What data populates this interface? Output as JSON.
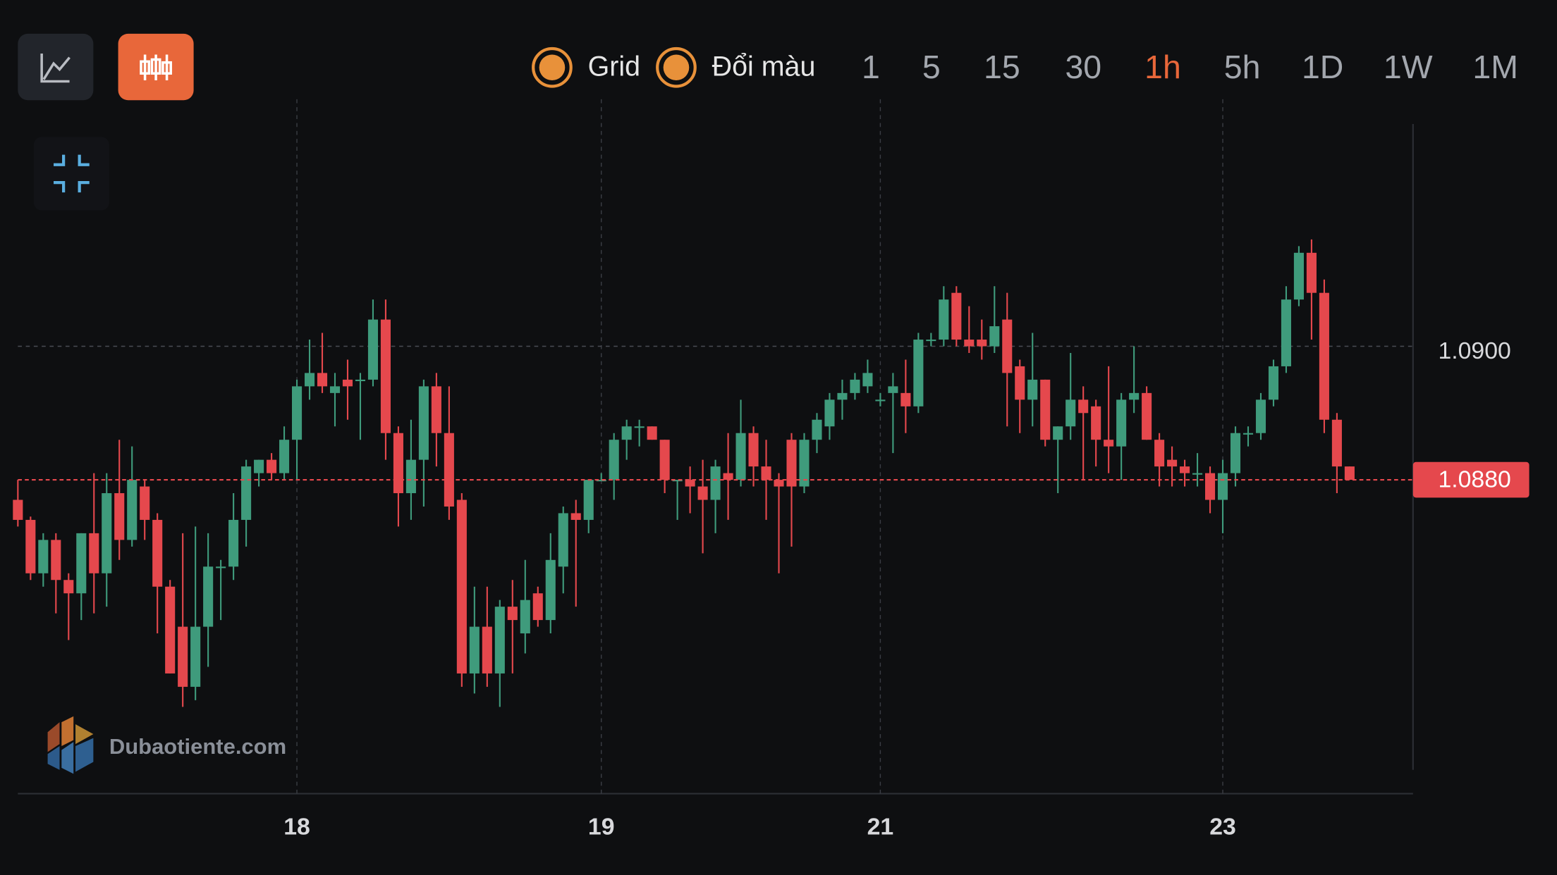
{
  "toolbar": {
    "toggles": [
      "Grid",
      "Đổi màu"
    ],
    "timeframes": [
      "1",
      "5",
      "15",
      "30",
      "1h",
      "5h",
      "1D",
      "1W",
      "1M"
    ],
    "active": 4,
    "active_color": "#e8673a"
  },
  "watermark": "Dubaotiente.com",
  "chart_data": {
    "type": "candlestick",
    "open": [
      1.0877,
      1.0874,
      1.0866,
      1.0871,
      1.0865,
      1.0863,
      1.0872,
      1.0866,
      1.0878,
      1.0871,
      1.0879,
      1.0874,
      1.0864,
      1.0858,
      1.0849,
      1.0858,
      1.0867,
      1.0867,
      1.0874,
      1.0881,
      1.0883,
      1.0881,
      1.0886,
      1.0894,
      1.0896,
      1.0893,
      1.0895,
      1.0895,
      1.0895,
      1.0904,
      1.0887,
      1.0878,
      1.0883,
      1.0894,
      1.0887,
      1.0877,
      1.0851,
      1.0858,
      1.0851,
      1.0861,
      1.0857,
      1.0863,
      1.0859,
      1.0867,
      1.0875,
      1.0874,
      1.088,
      1.088,
      1.0886,
      1.0888,
      1.0888,
      1.0886,
      1.088,
      1.088,
      1.0879,
      1.0877,
      1.0881,
      1.088,
      1.0887,
      1.0882,
      1.088,
      1.0886,
      1.0879,
      1.0886,
      1.0888,
      1.0892,
      1.0893,
      1.0894,
      1.0892,
      1.0893,
      1.0893,
      1.0891,
      1.0901,
      1.0901,
      1.0908,
      1.0901,
      1.0901,
      1.09,
      1.0904,
      1.0897,
      1.0892,
      1.0895,
      1.0886,
      1.0888,
      1.0892,
      1.0891,
      1.0886,
      1.0885,
      1.0892,
      1.0893,
      1.0886,
      1.0883,
      1.0882,
      1.0881,
      1.0881,
      1.0877,
      1.0881,
      1.0887,
      1.0887,
      1.0892,
      1.0897,
      1.0907,
      1.0914,
      1.0908,
      1.0889,
      1.0882
    ],
    "high": [
      1.088,
      1.08745,
      1.0872,
      1.0872,
      1.0866,
      1.0872,
      1.0881,
      1.0881,
      1.0886,
      1.0885,
      1.088,
      1.0875,
      1.0865,
      1.0872,
      1.0873,
      1.0872,
      1.0868,
      1.0878,
      1.0883,
      1.0883,
      1.0884,
      1.0888,
      1.0895,
      1.0901,
      1.0902,
      1.0896,
      1.0898,
      1.0896,
      1.0907,
      1.0907,
      1.0888,
      1.0889,
      1.0895,
      1.0896,
      1.0894,
      1.0878,
      1.0864,
      1.0864,
      1.0862,
      1.0865,
      1.0868,
      1.0864,
      1.0872,
      1.0876,
      1.0877,
      1.088,
      1.0881,
      1.0887,
      1.0889,
      1.0889,
      1.0888,
      1.0886,
      1.088,
      1.0882,
      1.0883,
      1.0883,
      1.0887,
      1.0892,
      1.0888,
      1.0886,
      1.0881,
      1.0887,
      1.0887,
      1.089,
      1.0893,
      1.0895,
      1.0896,
      1.0898,
      1.0893,
      1.0896,
      1.0898,
      1.0902,
      1.0902,
      1.0909,
      1.0909,
      1.0906,
      1.0904,
      1.0909,
      1.0908,
      1.0898,
      1.0902,
      1.0895,
      1.0888,
      1.0899,
      1.0894,
      1.0892,
      1.0897,
      1.0893,
      1.09,
      1.0894,
      1.0887,
      1.0885,
      1.0883,
      1.0884,
      1.0882,
      1.0883,
      1.0888,
      1.0888,
      1.0893,
      1.0898,
      1.0909,
      1.0915,
      1.0916,
      1.091,
      1.089,
      1.0882
    ],
    "low": [
      1.0873,
      1.0865,
      1.0864,
      1.086,
      1.0856,
      1.0859,
      1.086,
      1.0861,
      1.0868,
      1.087,
      1.0871,
      1.0857,
      1.0851,
      1.0846,
      1.0847,
      1.0852,
      1.0859,
      1.0865,
      1.087,
      1.0879,
      1.088,
      1.088,
      1.088,
      1.0892,
      1.0893,
      1.0888,
      1.0889,
      1.0886,
      1.0894,
      1.0883,
      1.0873,
      1.0874,
      1.0876,
      1.0882,
      1.0874,
      1.0849,
      1.0848,
      1.0849,
      1.0846,
      1.0851,
      1.0854,
      1.0858,
      1.0857,
      1.0863,
      1.0861,
      1.0872,
      1.088,
      1.0877,
      1.0883,
      1.0885,
      1.0886,
      1.0878,
      1.0874,
      1.0875,
      1.0869,
      1.0872,
      1.0874,
      1.0879,
      1.0879,
      1.0874,
      1.0866,
      1.087,
      1.0878,
      1.0884,
      1.0886,
      1.0889,
      1.0892,
      1.0893,
      1.0891,
      1.0884,
      1.0887,
      1.089,
      1.09,
      1.09,
      1.09,
      1.0899,
      1.0898,
      1.0899,
      1.0888,
      1.0887,
      1.0888,
      1.0885,
      1.0878,
      1.0886,
      1.088,
      1.0882,
      1.0881,
      1.088,
      1.089,
      1.0886,
      1.0879,
      1.0879,
      1.0879,
      1.0879,
      1.0875,
      1.0872,
      1.0879,
      1.0885,
      1.0886,
      1.0891,
      1.0896,
      1.0906,
      1.0901,
      1.0887,
      1.0878,
      1.088
    ],
    "close": [
      1.0874,
      1.0866,
      1.0871,
      1.0865,
      1.0863,
      1.0872,
      1.0866,
      1.0878,
      1.0871,
      1.088,
      1.0874,
      1.0864,
      1.0851,
      1.0849,
      1.0858,
      1.0867,
      1.0867,
      1.0874,
      1.0882,
      1.0883,
      1.0881,
      1.0886,
      1.0894,
      1.0896,
      1.0894,
      1.0894,
      1.0894,
      1.0895,
      1.0904,
      1.0887,
      1.0878,
      1.0883,
      1.0894,
      1.0887,
      1.0876,
      1.0851,
      1.0858,
      1.0851,
      1.0861,
      1.0859,
      1.0862,
      1.0859,
      1.0868,
      1.0875,
      1.0874,
      1.088,
      1.088,
      1.0886,
      1.0888,
      1.0888,
      1.0886,
      1.088,
      1.088,
      1.0879,
      1.0877,
      1.0882,
      1.088,
      1.0887,
      1.0882,
      1.088,
      1.0879,
      1.0879,
      1.0886,
      1.0889,
      1.0892,
      1.0893,
      1.0895,
      1.0896,
      1.0892,
      1.0894,
      1.0891,
      1.0901,
      1.0901,
      1.0907,
      1.0901,
      1.09,
      1.09,
      1.0903,
      1.0896,
      1.0892,
      1.0895,
      1.0886,
      1.0888,
      1.0892,
      1.089,
      1.0886,
      1.0885,
      1.0892,
      1.0893,
      1.0886,
      1.0882,
      1.0882,
      1.0881,
      1.0881,
      1.0877,
      1.0881,
      1.0887,
      1.0887,
      1.0892,
      1.0897,
      1.0907,
      1.0914,
      1.0908,
      1.0889,
      1.0882,
      1.088
    ],
    "up_color": "#3f9b7c",
    "down_color": "#e5484d",
    "ylim": [
      1.0833,
      1.0937
    ],
    "yticks": [
      {
        "value": 1.09,
        "label": "1.0900"
      }
    ],
    "xlim": [
      0,
      110
    ],
    "xticks": [
      {
        "value": 22,
        "label": "18"
      },
      {
        "value": 46,
        "label": "19"
      },
      {
        "value": 68,
        "label": "21"
      },
      {
        "value": 95,
        "label": "23"
      }
    ],
    "last_price": {
      "value": 1.088,
      "label": "1.0880"
    },
    "grid": true
  }
}
